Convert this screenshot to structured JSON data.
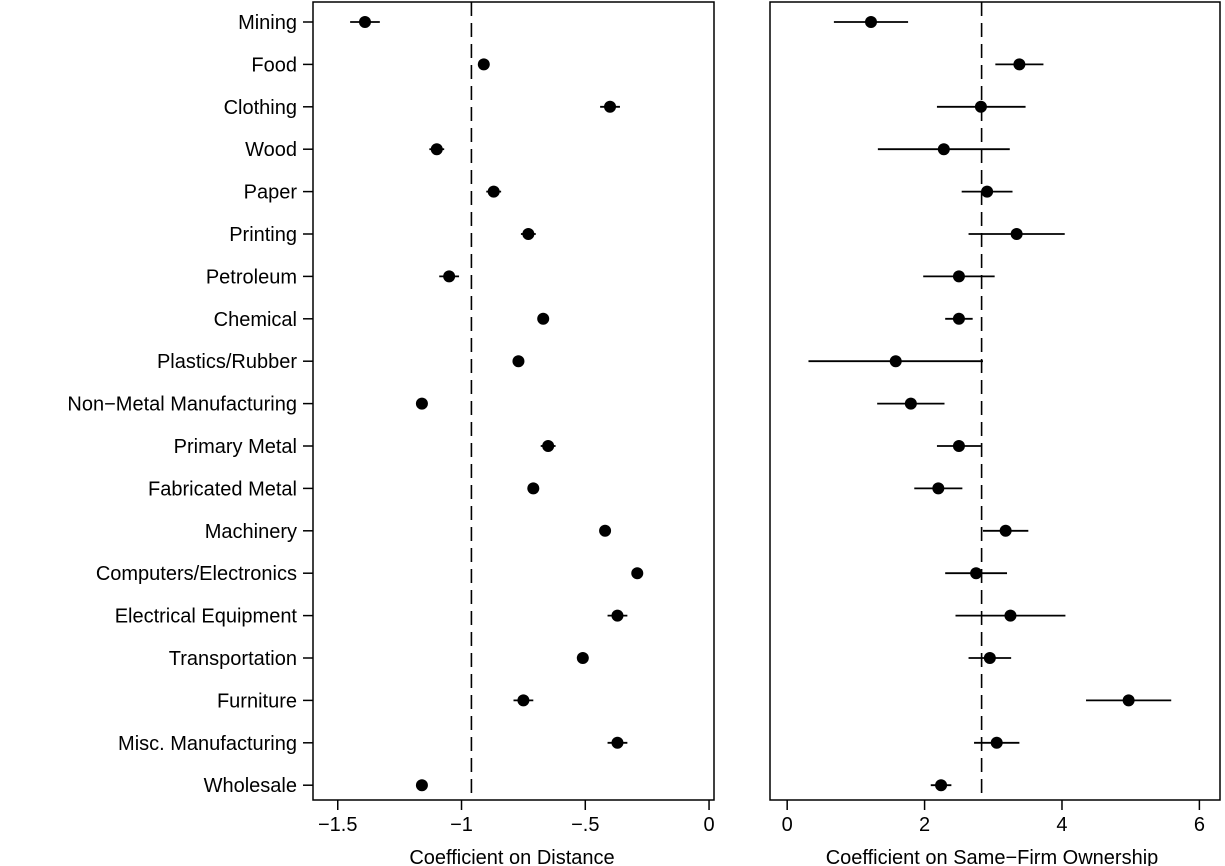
{
  "chart_data": [
    {
      "type": "scatter",
      "title": "",
      "xlabel": "Coefficient on Distance",
      "ylabel": "",
      "xlim": [
        -1.6,
        0.02
      ],
      "xticks": [
        -1.5,
        -1,
        -0.5,
        0
      ],
      "xtick_labels": [
        "−1.5",
        "−1",
        "−.5",
        "0"
      ],
      "reference_line": -0.96,
      "categories": [
        "Mining",
        "Food",
        "Clothing",
        "Wood",
        "Paper",
        "Printing",
        "Petroleum",
        "Chemical",
        "Plastics/Rubber",
        "Non−Metal Manufacturing",
        "Primary Metal",
        "Fabricated Metal",
        "Machinery",
        "Computers/Electronics",
        "Electrical Equipment",
        "Transportation",
        "Furniture",
        "Misc. Manufacturing",
        "Wholesale"
      ],
      "series": [
        {
          "estimate": [
            -1.39,
            -0.91,
            -0.4,
            -1.1,
            -0.87,
            -0.73,
            -1.05,
            -0.67,
            -0.77,
            -1.16,
            -0.65,
            -0.71,
            -0.42,
            -0.29,
            -0.37,
            -0.51,
            -0.75,
            -0.37,
            -1.16
          ],
          "ci_low": [
            -1.45,
            -0.93,
            -0.44,
            -1.13,
            -0.9,
            -0.76,
            -1.09,
            -0.69,
            -0.79,
            -1.18,
            -0.68,
            -0.73,
            -0.44,
            -0.3,
            -0.41,
            -0.53,
            -0.79,
            -0.41,
            -1.17
          ],
          "ci_high": [
            -1.33,
            -0.89,
            -0.36,
            -1.07,
            -0.84,
            -0.7,
            -1.01,
            -0.65,
            -0.75,
            -1.14,
            -0.62,
            -0.69,
            -0.4,
            -0.28,
            -0.33,
            -0.49,
            -0.71,
            -0.33,
            -1.15
          ]
        }
      ],
      "grid": false
    },
    {
      "type": "scatter",
      "title": "",
      "xlabel": "Coefficient on Same−Firm Ownership",
      "ylabel": "",
      "xlim": [
        -0.25,
        6.3
      ],
      "xticks": [
        0,
        2,
        4,
        6
      ],
      "xtick_labels": [
        "0",
        "2",
        "4",
        "6"
      ],
      "reference_line": 2.83,
      "categories": [
        "Mining",
        "Food",
        "Clothing",
        "Wood",
        "Paper",
        "Printing",
        "Petroleum",
        "Chemical",
        "Plastics/Rubber",
        "Non−Metal Manufacturing",
        "Primary Metal",
        "Fabricated Metal",
        "Machinery",
        "Computers/Electronics",
        "Electrical Equipment",
        "Transportation",
        "Furniture",
        "Misc. Manufacturing",
        "Wholesale"
      ],
      "series": [
        {
          "estimate": [
            1.22,
            3.38,
            2.82,
            2.28,
            2.91,
            3.34,
            2.5,
            2.5,
            1.58,
            1.8,
            2.5,
            2.2,
            3.18,
            2.75,
            3.25,
            2.95,
            4.97,
            3.05,
            2.24
          ],
          "ci_low": [
            0.68,
            3.03,
            2.18,
            1.32,
            2.54,
            2.64,
            1.98,
            2.3,
            0.31,
            1.31,
            2.18,
            1.85,
            2.85,
            2.3,
            2.45,
            2.64,
            4.35,
            2.72,
            2.09
          ],
          "ci_high": [
            1.76,
            3.73,
            3.47,
            3.24,
            3.28,
            4.04,
            3.02,
            2.7,
            2.85,
            2.29,
            2.82,
            2.55,
            3.51,
            3.2,
            4.05,
            3.26,
            5.59,
            3.38,
            2.39
          ]
        }
      ],
      "grid": false
    }
  ]
}
